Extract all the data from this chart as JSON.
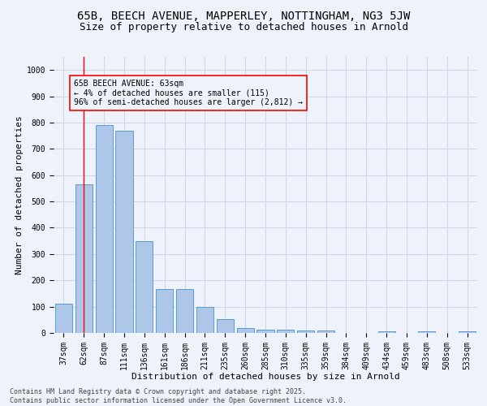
{
  "title1": "65B, BEECH AVENUE, MAPPERLEY, NOTTINGHAM, NG3 5JW",
  "title2": "Size of property relative to detached houses in Arnold",
  "xlabel": "Distribution of detached houses by size in Arnold",
  "ylabel": "Number of detached properties",
  "categories": [
    "37sqm",
    "62sqm",
    "87sqm",
    "111sqm",
    "136sqm",
    "161sqm",
    "186sqm",
    "211sqm",
    "235sqm",
    "260sqm",
    "285sqm",
    "310sqm",
    "335sqm",
    "359sqm",
    "384sqm",
    "409sqm",
    "434sqm",
    "459sqm",
    "483sqm",
    "508sqm",
    "533sqm"
  ],
  "values": [
    110,
    565,
    790,
    770,
    350,
    168,
    168,
    98,
    53,
    18,
    13,
    13,
    10,
    10,
    0,
    0,
    7,
    0,
    7,
    0,
    7
  ],
  "bar_color": "#aec6e8",
  "bar_edge_color": "#5b9bd5",
  "grid_color": "#d0d8e8",
  "bg_color": "#eef2fa",
  "annotation_line1": "65B BEECH AVENUE: 63sqm",
  "annotation_line2": "← 4% of detached houses are smaller (115)",
  "annotation_line3": "96% of semi-detached houses are larger (2,812) →",
  "red_line_x": 1,
  "annotation_color": "red",
  "footer_line1": "Contains HM Land Registry data © Crown copyright and database right 2025.",
  "footer_line2": "Contains public sector information licensed under the Open Government Licence v3.0.",
  "ylim": [
    0,
    1050
  ],
  "yticks": [
    0,
    100,
    200,
    300,
    400,
    500,
    600,
    700,
    800,
    900,
    1000
  ],
  "title1_fontsize": 10,
  "title2_fontsize": 9,
  "tick_fontsize": 7,
  "label_fontsize": 8,
  "ann_fontsize": 7,
  "footer_fontsize": 6
}
